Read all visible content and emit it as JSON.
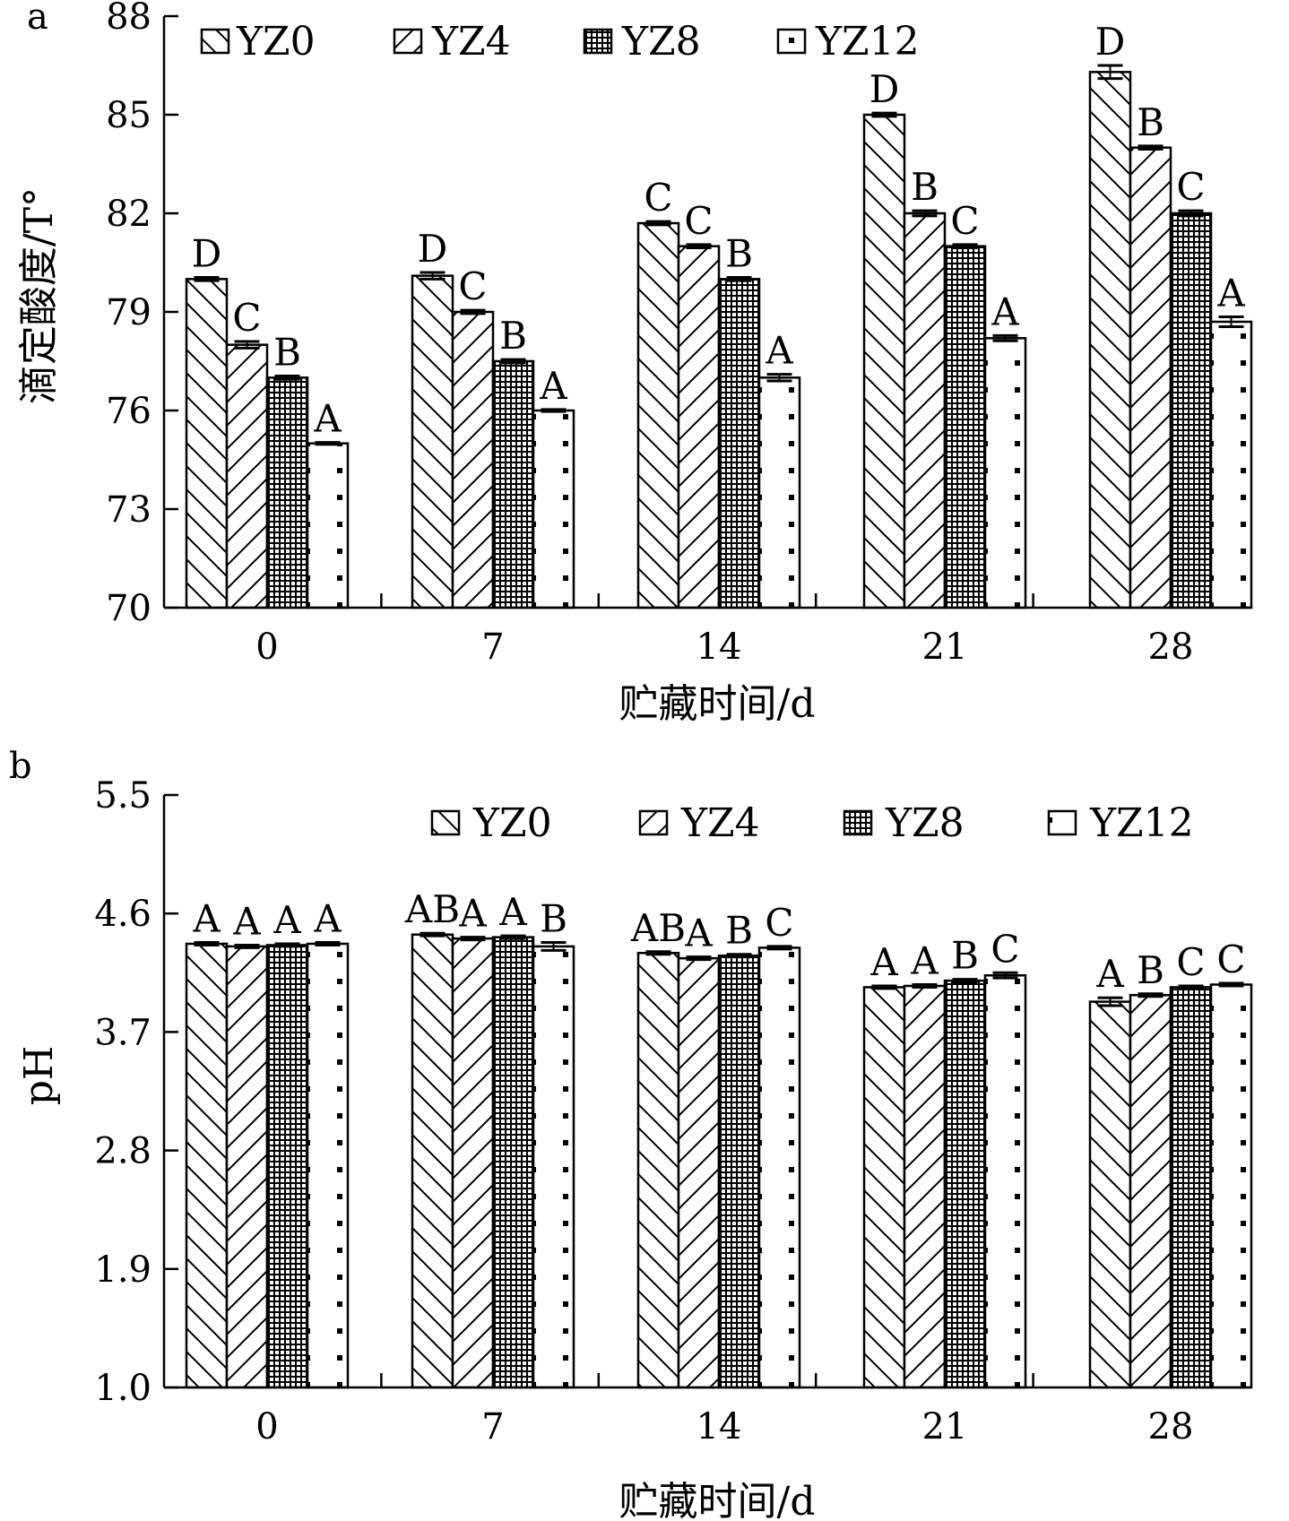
{
  "chart_data": [
    {
      "panel": "a",
      "type": "bar",
      "xlabel": "贮藏时间/d",
      "ylabel": "滴定酸度/T°",
      "categories": [
        "0",
        "7",
        "14",
        "21",
        "28"
      ],
      "ylim": [
        70,
        88
      ],
      "yticks": [
        "70",
        "73",
        "76",
        "79",
        "82",
        "85",
        "88"
      ],
      "legend_position": "top",
      "series": [
        {
          "name": "YZ0",
          "pattern": "backslash-hatch",
          "values": [
            80.0,
            80.1,
            81.7,
            85.0,
            86.3
          ],
          "errors": [
            0.05,
            0.1,
            0.05,
            0.05,
            0.2
          ],
          "labels": [
            "D",
            "D",
            "C",
            "D",
            "D"
          ]
        },
        {
          "name": "YZ4",
          "pattern": "slash-hatch",
          "values": [
            78.0,
            79.0,
            81.0,
            82.0,
            84.0
          ],
          "errors": [
            0.1,
            0.05,
            0.05,
            0.08,
            0.05
          ],
          "labels": [
            "C",
            "C",
            "C",
            "B",
            "B"
          ]
        },
        {
          "name": "YZ8",
          "pattern": "dense-dots",
          "values": [
            77.0,
            77.5,
            80.0,
            81.0,
            82.0
          ],
          "errors": [
            0.05,
            0.05,
            0.05,
            0.05,
            0.08
          ],
          "labels": [
            "B",
            "B",
            "B",
            "C",
            "C"
          ]
        },
        {
          "name": "YZ12",
          "pattern": "sparse-dots",
          "values": [
            75.0,
            76.0,
            77.0,
            78.2,
            78.7
          ],
          "errors": [
            0.03,
            0.03,
            0.1,
            0.08,
            0.15
          ],
          "labels": [
            "A",
            "A",
            "A",
            "A",
            "A"
          ]
        }
      ]
    },
    {
      "panel": "b",
      "type": "bar",
      "xlabel": "贮藏时间/d",
      "ylabel": "pH",
      "categories": [
        "0",
        "7",
        "14",
        "21",
        "28"
      ],
      "ylim": [
        1.0,
        5.5
      ],
      "yticks": [
        "1.0",
        "1.9",
        "2.8",
        "3.7",
        "4.6",
        "5.5"
      ],
      "legend_position": "top-right",
      "series": [
        {
          "name": "YZ0",
          "pattern": "backslash-hatch",
          "values": [
            4.37,
            4.44,
            4.3,
            4.04,
            3.93
          ],
          "errors": [
            0.01,
            0.01,
            0.01,
            0.01,
            0.03
          ],
          "labels": [
            "A",
            "AB",
            "AB",
            "A",
            "A"
          ]
        },
        {
          "name": "YZ4",
          "pattern": "slash-hatch",
          "values": [
            4.35,
            4.41,
            4.26,
            4.05,
            3.98
          ],
          "errors": [
            0.01,
            0.01,
            0.01,
            0.01,
            0.01
          ],
          "labels": [
            "A",
            "A",
            "A",
            "A",
            "B"
          ]
        },
        {
          "name": "YZ8",
          "pattern": "dense-dots",
          "values": [
            4.36,
            4.42,
            4.28,
            4.09,
            4.04
          ],
          "errors": [
            0.01,
            0.01,
            0.01,
            0.01,
            0.01
          ],
          "labels": [
            "A",
            "A",
            "B",
            "B",
            "C"
          ]
        },
        {
          "name": "YZ12",
          "pattern": "sparse-dots",
          "values": [
            4.37,
            4.35,
            4.34,
            4.13,
            4.06
          ],
          "errors": [
            0.01,
            0.03,
            0.01,
            0.02,
            0.01
          ],
          "labels": [
            "A",
            "B",
            "C",
            "C",
            "C"
          ]
        }
      ]
    }
  ]
}
